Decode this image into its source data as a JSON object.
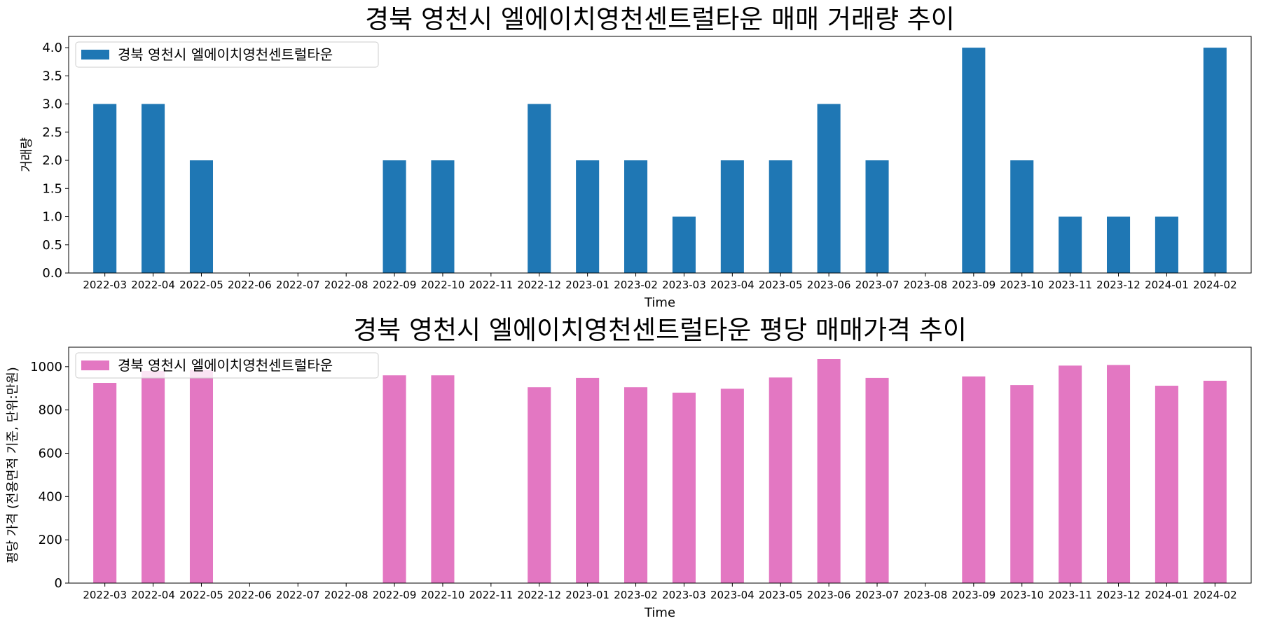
{
  "chart_data": [
    {
      "type": "bar",
      "title": "경북 영천시 엘에이치영천센트럴타운 매매 거래량 추이",
      "xlabel": "Time",
      "ylabel": "거래량",
      "ylim": [
        0,
        4.2
      ],
      "yticks": [
        "0.0",
        "0.5",
        "1.0",
        "1.5",
        "2.0",
        "2.5",
        "3.0",
        "3.5",
        "4.0"
      ],
      "categories": [
        "2022-03",
        "2022-04",
        "2022-05",
        "2022-06",
        "2022-07",
        "2022-08",
        "2022-09",
        "2022-10",
        "2022-11",
        "2022-12",
        "2023-01",
        "2023-02",
        "2023-03",
        "2023-04",
        "2023-05",
        "2023-06",
        "2023-07",
        "2023-08",
        "2023-09",
        "2023-10",
        "2023-11",
        "2023-12",
        "2024-01",
        "2024-02"
      ],
      "series": [
        {
          "name": "경북 영천시 엘에이치영천센트럴타운",
          "color": "#1f77b4",
          "values": [
            3,
            3,
            2,
            0,
            0,
            0,
            2,
            2,
            0,
            3,
            2,
            2,
            1,
            2,
            2,
            3,
            2,
            0,
            4,
            2,
            1,
            1,
            1,
            4
          ]
        }
      ],
      "legend": "top-left",
      "grid": false
    },
    {
      "type": "bar",
      "title": "경북 영천시 엘에이치영천센트럴타운 평당 매매가격 추이",
      "xlabel": "Time",
      "ylabel": "평당 가격 (전용면적 기준, 단위:만원)",
      "ylim": [
        0,
        1090
      ],
      "yticks": [
        "0",
        "200",
        "400",
        "600",
        "800",
        "1000"
      ],
      "categories": [
        "2022-03",
        "2022-04",
        "2022-05",
        "2022-06",
        "2022-07",
        "2022-08",
        "2022-09",
        "2022-10",
        "2022-11",
        "2022-12",
        "2023-01",
        "2023-02",
        "2023-03",
        "2023-04",
        "2023-05",
        "2023-06",
        "2023-07",
        "2023-08",
        "2023-09",
        "2023-10",
        "2023-11",
        "2023-12",
        "2024-01",
        "2024-02"
      ],
      "series": [
        {
          "name": "경북 영천시 엘에이치영천센트럴타운",
          "color": "#e377c2",
          "values": [
            925,
            980,
            985,
            null,
            null,
            null,
            960,
            960,
            null,
            905,
            948,
            905,
            880,
            898,
            950,
            1035,
            948,
            null,
            955,
            915,
            1005,
            1008,
            912,
            935
          ]
        }
      ],
      "legend": "top-left",
      "grid": false
    }
  ]
}
